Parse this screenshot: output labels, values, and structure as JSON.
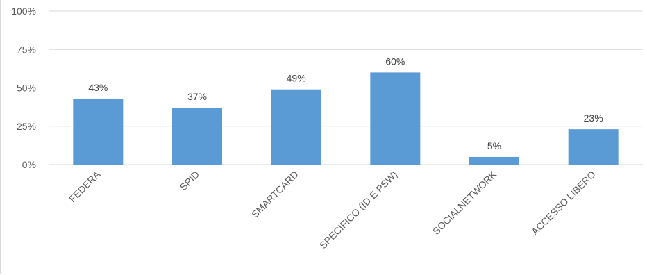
{
  "chart_data": {
    "type": "bar",
    "categories": [
      "FEDERA",
      "SPID",
      "SMARTCARD",
      "SPECIFICO (ID E PSW)",
      "SOCIALNETWORK",
      "ACCESSO LIBERO"
    ],
    "values": [
      43,
      37,
      49,
      60,
      5,
      23
    ],
    "data_labels": [
      "43%",
      "37%",
      "49%",
      "60%",
      "5%",
      "23%"
    ],
    "y_ticks": [
      0,
      25,
      50,
      75,
      100
    ],
    "y_tick_labels": [
      "0%",
      "25%",
      "50%",
      "75%",
      "100%"
    ],
    "ylim": [
      0,
      100
    ],
    "title": "",
    "xlabel": "",
    "ylabel": "",
    "grid": true,
    "legend": "none",
    "colors": {
      "bar": "#5b9bd5",
      "grid": "#d9d9d9",
      "text": "#595959"
    }
  }
}
